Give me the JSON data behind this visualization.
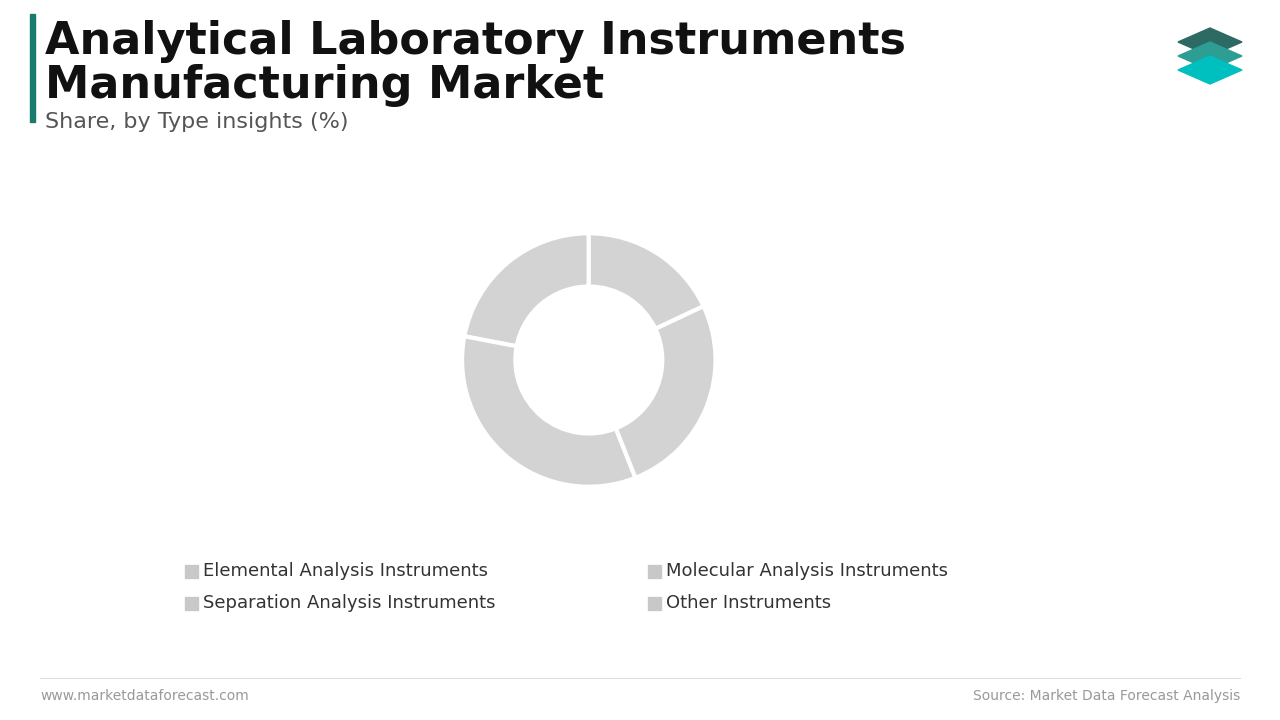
{
  "title_line1": "Analytical Laboratory Instruments",
  "title_line2": "Manufacturing Market",
  "subtitle": "Share, by Type insights (%)",
  "segments": [
    {
      "label": "Elemental Analysis Instruments",
      "value": 22
    },
    {
      "label": "Molecular Analysis Instruments",
      "value": 34
    },
    {
      "label": "Separation Analysis Instruments",
      "value": 26
    },
    {
      "label": "Other Instruments",
      "value": 18
    }
  ],
  "donut_color": "#D3D3D3",
  "wedge_edge_color": "#FFFFFF",
  "background_color": "#FFFFFF",
  "title_color": "#111111",
  "subtitle_color": "#555555",
  "footer_left": "www.marketdataforecast.com",
  "footer_right": "Source: Market Data Forecast Analysis",
  "accent_bar_color": "#1A7A6E",
  "logo_colors": [
    "#2D6A64",
    "#2E9E94",
    "#00BFBF"
  ],
  "legend_marker_color": "#C8C8C8",
  "legend_text_color": "#333333",
  "left_legend": [
    "Elemental Analysis Instruments",
    "Separation Analysis Instruments"
  ],
  "right_legend": [
    "Molecular Analysis Instruments",
    "Other Instruments"
  ],
  "footer_line_color": "#DDDDDD",
  "footer_text_color": "#999999"
}
